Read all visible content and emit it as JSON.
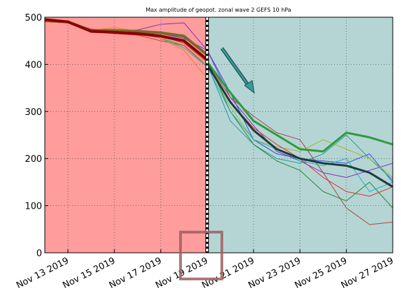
{
  "chart_data": {
    "type": "line",
    "title": "Max amplitude of geopot. zonal wave 2 GEFS 10 hPa",
    "x": [
      "2019-11-12",
      "2019-11-13",
      "2019-11-14",
      "2019-11-15",
      "2019-11-16",
      "2019-11-17",
      "2019-11-18",
      "2019-11-19",
      "2019-11-20",
      "2019-11-21",
      "2019-11-22",
      "2019-11-23",
      "2019-11-24",
      "2019-11-25",
      "2019-11-26",
      "2019-11-27"
    ],
    "xlim": [
      "2019-11-12",
      "2019-11-27"
    ],
    "xticks": [
      {
        "value": "2019-11-13",
        "label": "Nov 13 2019"
      },
      {
        "value": "2019-11-15",
        "label": "Nov 15 2019"
      },
      {
        "value": "2019-11-17",
        "label": "Nov 17 2019"
      },
      {
        "value": "2019-11-19",
        "label": "Nov 19 2019"
      },
      {
        "value": "2019-11-21",
        "label": "Nov 21 2019"
      },
      {
        "value": "2019-11-23",
        "label": "Nov 23 2019"
      },
      {
        "value": "2019-11-25",
        "label": "Nov 25 2019"
      },
      {
        "value": "2019-11-27",
        "label": "Nov 27 2019"
      }
    ],
    "ylim": [
      0,
      500
    ],
    "yticks": [
      0,
      100,
      200,
      300,
      400,
      500
    ],
    "grid": true,
    "shaded_regions": [
      {
        "xlim": [
          "2019-11-12",
          "2019-11-19"
        ],
        "color": "#ff9c9c"
      },
      {
        "xlim": [
          "2019-11-19",
          "2019-11-27"
        ],
        "color": "#b5d5d5"
      }
    ],
    "vline": "2019-11-19",
    "series": [
      {
        "color": "#3050e0",
        "width": 1,
        "values": [
          492,
          490,
          472,
          470,
          468,
          465,
          455,
          430,
          340,
          240,
          210,
          200,
          195,
          190,
          210,
          150
        ]
      },
      {
        "color": "#8030c0",
        "width": 1,
        "values": [
          493,
          490,
          475,
          470,
          473,
          485,
          488,
          430,
          330,
          270,
          215,
          195,
          170,
          160,
          175,
          190
        ]
      },
      {
        "color": "#2a9a9a",
        "width": 1,
        "values": [
          490,
          488,
          470,
          468,
          466,
          455,
          440,
          400,
          280,
          230,
          200,
          190,
          210,
          250,
          200,
          155
        ]
      },
      {
        "color": "#b04040",
        "width": 1,
        "values": [
          492,
          489,
          472,
          470,
          468,
          460,
          445,
          405,
          330,
          290,
          255,
          240,
          170,
          95,
          60,
          65
        ]
      },
      {
        "color": "#9aba30",
        "width": 1,
        "values": [
          492,
          490,
          470,
          472,
          470,
          458,
          440,
          400,
          310,
          240,
          225,
          215,
          240,
          220,
          200,
          160
        ]
      },
      {
        "color": "#208a30",
        "width": 1,
        "values": [
          493,
          490,
          473,
          470,
          468,
          462,
          450,
          410,
          300,
          230,
          195,
          175,
          130,
          110,
          150,
          95
        ]
      },
      {
        "color": "#e03030",
        "width": 1,
        "values": [
          490,
          488,
          470,
          465,
          462,
          450,
          440,
          395,
          320,
          265,
          230,
          200,
          160,
          130,
          120,
          140
        ]
      },
      {
        "color": "#20b0c0",
        "width": 1,
        "values": [
          491,
          489,
          471,
          468,
          466,
          455,
          435,
          395,
          300,
          240,
          220,
          195,
          185,
          200,
          130,
          150
        ]
      },
      {
        "color": "#f08020",
        "width": 1,
        "values": [
          490,
          488,
          472,
          478,
          470,
          455,
          430,
          370,
          null,
          null,
          null,
          null,
          null,
          null,
          null,
          null
        ]
      },
      {
        "color": "#7a6a2a",
        "width": 4,
        "values": [
          493,
          490,
          472,
          472,
          470,
          467,
          460,
          420,
          null,
          null,
          null,
          null,
          null,
          null,
          null,
          null
        ]
      },
      {
        "color": "#8b0000",
        "width": 4,
        "values": [
          495,
          490,
          470,
          468,
          465,
          460,
          450,
          410,
          null,
          null,
          null,
          null,
          null,
          null,
          null,
          null
        ]
      },
      {
        "color": "#2e9a3e",
        "width": 3,
        "values": [
          null,
          null,
          null,
          null,
          null,
          null,
          null,
          405,
          340,
          280,
          250,
          220,
          215,
          255,
          245,
          230
        ]
      },
      {
        "color": "#1f3b3b",
        "width": 3,
        "values": [
          null,
          null,
          null,
          null,
          null,
          null,
          null,
          400,
          320,
          260,
          220,
          200,
          190,
          185,
          170,
          140
        ]
      }
    ]
  }
}
